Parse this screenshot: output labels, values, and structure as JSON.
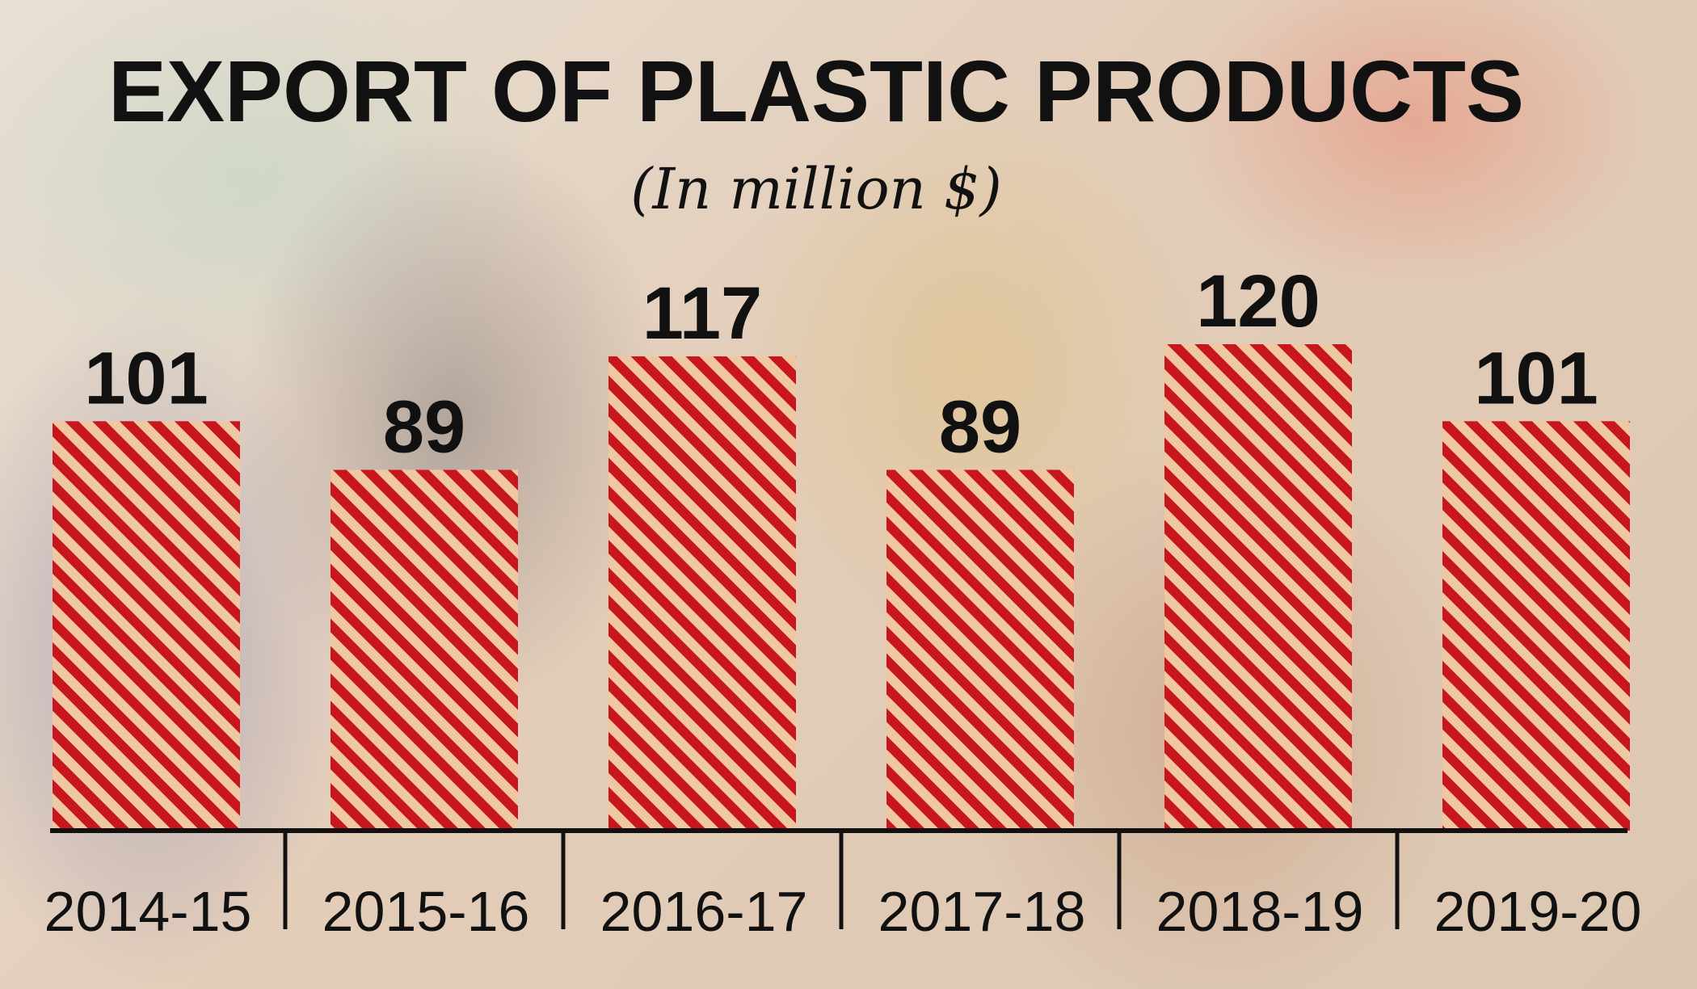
{
  "chart_data": {
    "type": "bar",
    "title": "EXPORT OF PLASTIC PRODUCTS",
    "subtitle": "(In million $)",
    "categories": [
      "2014-15",
      "2015-16",
      "2016-17",
      "2017-18",
      "2018-19",
      "2019-20"
    ],
    "values": [
      101,
      89,
      117,
      89,
      120,
      101
    ],
    "data_labels": [
      "101",
      "89",
      "117",
      "89",
      "120",
      "101"
    ],
    "xlabel": "",
    "ylabel": "",
    "ylim": [
      0,
      120
    ],
    "grid": false,
    "legend": "none",
    "bar_pattern": "diagonal-stripes",
    "colors": {
      "bar_stripe": "#c8161d",
      "bar_fill": "#f0c7a3",
      "text": "#111111",
      "axis": "#111111"
    }
  }
}
